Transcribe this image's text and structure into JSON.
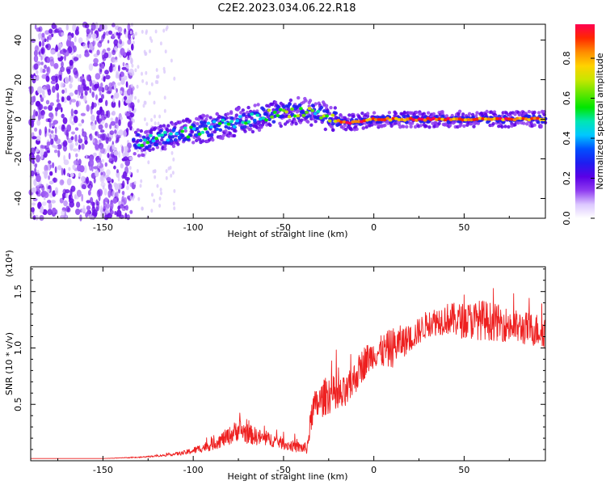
{
  "figure_title": "C2E2.2023.034.06.22.R18",
  "chart_data": [
    {
      "type": "heatmap",
      "xlabel": "Height of straight line (km)",
      "ylabel": "Frequency (Hz)",
      "xlim": [
        -190,
        95
      ],
      "ylim": [
        -50,
        48
      ],
      "x_ticks": [
        -150,
        -100,
        -50,
        0,
        50
      ],
      "y_ticks": [
        -40,
        -20,
        0,
        20,
        40
      ],
      "colorbar": {
        "label": "Normalized spectral amplitude",
        "range": [
          0.0,
          0.97
        ],
        "ticks": [
          "0.0",
          "0.2",
          "0.4",
          "0.6",
          "0.8"
        ],
        "colormap": [
          "#ffffff",
          "#dcc8ff",
          "#8f3cf0",
          "#5a00e6",
          "#1e1ef0",
          "#0050ff",
          "#00c8ff",
          "#00e6b4",
          "#00e600",
          "#64e600",
          "#c8e600",
          "#ffd200",
          "#ff8c00",
          "#ff2800",
          "#ff0050"
        ]
      },
      "ridge": [
        {
          "x": -133,
          "y": -12
        },
        {
          "x": -120,
          "y": -10
        },
        {
          "x": -100,
          "y": -6
        },
        {
          "x": -80,
          "y": -2
        },
        {
          "x": -60,
          "y": 2
        },
        {
          "x": -45,
          "y": 4
        },
        {
          "x": -35,
          "y": 4
        },
        {
          "x": -25,
          "y": 1
        },
        {
          "x": -15,
          "y": -2
        },
        {
          "x": 0,
          "y": 0
        },
        {
          "x": 20,
          "y": 0
        },
        {
          "x": 50,
          "y": 0
        },
        {
          "x": 95,
          "y": 0
        }
      ],
      "noise_region_xmax": -133
    },
    {
      "type": "line",
      "xlabel": "Height of straight line (km)",
      "ylabel": "SNR (10 * v/v)",
      "y_exponent_label": "(x10⁴)",
      "xlim": [
        -190,
        95
      ],
      "ylim": [
        0,
        1.72
      ],
      "x_ticks": [
        -150,
        -100,
        -50,
        0,
        50
      ],
      "y_ticks": [
        0.5,
        1.0,
        1.5
      ],
      "y_tick_labels": [
        "0.5",
        "1.0",
        "1.5"
      ],
      "color": "#ee2020",
      "x": [
        -190,
        -170,
        -150,
        -130,
        -115,
        -105,
        -100,
        -90,
        -80,
        -75,
        -70,
        -62,
        -55,
        -48,
        -42,
        -37,
        -34,
        -30,
        -25,
        -20,
        -15,
        -10,
        -5,
        0,
        5,
        10,
        15,
        20,
        25,
        30,
        40,
        50,
        60,
        70,
        80,
        90,
        95
      ],
      "values": [
        0.02,
        0.02,
        0.02,
        0.03,
        0.05,
        0.07,
        0.09,
        0.14,
        0.22,
        0.28,
        0.24,
        0.2,
        0.18,
        0.14,
        0.12,
        0.11,
        0.45,
        0.52,
        0.6,
        0.55,
        0.6,
        0.75,
        0.88,
        0.95,
        0.97,
        1.0,
        1.05,
        1.08,
        1.15,
        1.22,
        1.26,
        1.24,
        1.25,
        1.22,
        1.18,
        1.16,
        1.15
      ],
      "noise_amplitude": [
        0.0,
        0.0,
        0.0,
        0.005,
        0.01,
        0.02,
        0.03,
        0.05,
        0.08,
        0.1,
        0.09,
        0.07,
        0.06,
        0.05,
        0.05,
        0.05,
        0.15,
        0.15,
        0.18,
        0.18,
        0.15,
        0.15,
        0.15,
        0.12,
        0.15,
        0.18,
        0.15,
        0.12,
        0.12,
        0.12,
        0.14,
        0.16,
        0.18,
        0.16,
        0.15,
        0.15,
        0.15
      ]
    }
  ]
}
